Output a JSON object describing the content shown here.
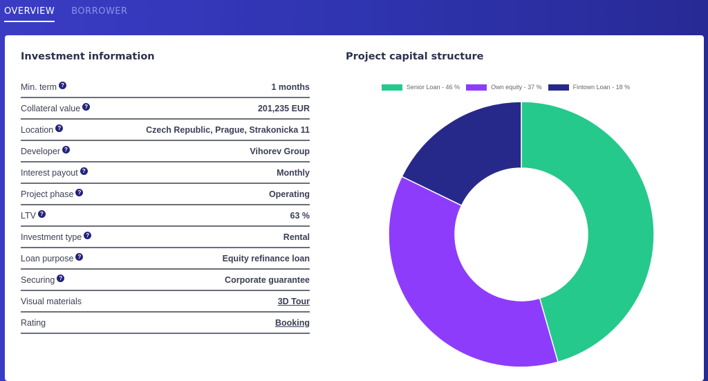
{
  "tabs": [
    {
      "label": "OVERVIEW",
      "active": true
    },
    {
      "label": "BORROWER",
      "active": false
    }
  ],
  "investment_info": {
    "title": "Investment information",
    "rows": [
      {
        "label": "Min. term",
        "value": "1 months",
        "help": true,
        "link": false
      },
      {
        "label": "Collateral value",
        "value": "201,235 EUR",
        "help": true,
        "link": false
      },
      {
        "label": "Location",
        "value": "Czech Republic, Prague, Strakonicka 11",
        "help": true,
        "link": false
      },
      {
        "label": "Developer",
        "value": "Vihorev Group",
        "help": true,
        "link": false
      },
      {
        "label": "Interest payout",
        "value": "Monthly",
        "help": true,
        "link": false
      },
      {
        "label": "Project phase",
        "value": "Operating",
        "help": true,
        "link": false
      },
      {
        "label": "LTV",
        "value": "63 %",
        "help": true,
        "link": false
      },
      {
        "label": "Investment type",
        "value": "Rental",
        "help": true,
        "link": false
      },
      {
        "label": "Loan purpose",
        "value": "Equity refinance loan",
        "help": true,
        "link": false
      },
      {
        "label": "Securing",
        "value": "Corporate guarantee",
        "help": true,
        "link": false
      },
      {
        "label": "Visual materials",
        "value": "3D Tour",
        "help": false,
        "link": true
      },
      {
        "label": "Rating",
        "value": "Booking",
        "help": false,
        "link": true
      }
    ],
    "help_icon": "question-circle-icon",
    "help_glyph": "?"
  },
  "chart_data": {
    "type": "pie",
    "variant": "donut",
    "title": "Project capital structure",
    "legend_position": "top",
    "slices": [
      {
        "label": "Senior Loan - 46 %",
        "name": "Senior Loan",
        "value": 46,
        "color": "#25c98b"
      },
      {
        "label": "Own equity - 37 %",
        "name": "Own equity",
        "value": 37,
        "color": "#8e3cfb"
      },
      {
        "label": "Fintown Loan - 18 %",
        "name": "Fintown Loan",
        "value": 18,
        "color": "#27298a"
      }
    ]
  }
}
